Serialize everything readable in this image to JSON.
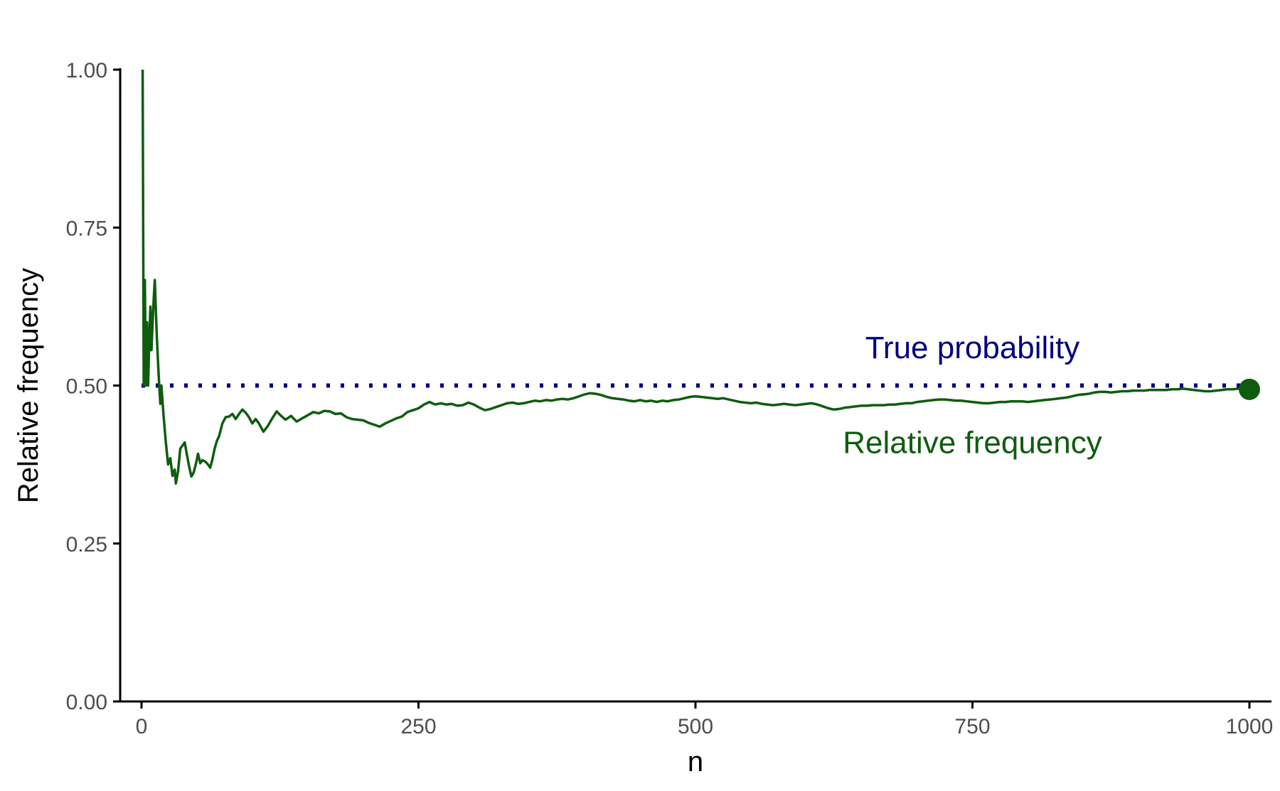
{
  "chart_data": {
    "type": "line",
    "title": "",
    "xlabel": "n",
    "ylabel": "Relative frequency",
    "xlim": [
      0,
      1000
    ],
    "ylim": [
      0,
      1
    ],
    "x_ticks": [
      0,
      250,
      500,
      750,
      1000
    ],
    "x_tick_labels": [
      "0",
      "250",
      "500",
      "750",
      "1000"
    ],
    "y_ticks": [
      0,
      0.25,
      0.5,
      0.75,
      1.0
    ],
    "y_tick_labels": [
      "0.00",
      "0.25",
      "0.50",
      "0.75",
      "1.00"
    ],
    "grid": false,
    "reference_line": {
      "y": 0.5,
      "style": "dotted",
      "color": "#000080",
      "label": "True probability"
    },
    "series": [
      {
        "name": "Relative frequency",
        "color": "#0f5c0f",
        "points": [
          [
            1,
            1.0
          ],
          [
            2,
            0.5
          ],
          [
            3,
            0.667
          ],
          [
            4,
            0.5
          ],
          [
            5,
            0.6
          ],
          [
            6,
            0.5
          ],
          [
            7,
            0.571
          ],
          [
            8,
            0.625
          ],
          [
            9,
            0.556
          ],
          [
            10,
            0.6
          ],
          [
            11,
            0.636
          ],
          [
            12,
            0.667
          ],
          [
            13,
            0.615
          ],
          [
            14,
            0.571
          ],
          [
            15,
            0.533
          ],
          [
            16,
            0.5
          ],
          [
            17,
            0.471
          ],
          [
            18,
            0.5
          ],
          [
            19,
            0.474
          ],
          [
            20,
            0.45
          ],
          [
            22,
            0.409
          ],
          [
            24,
            0.375
          ],
          [
            26,
            0.385
          ],
          [
            28,
            0.357
          ],
          [
            30,
            0.367
          ],
          [
            31,
            0.345
          ],
          [
            33,
            0.364
          ],
          [
            35,
            0.4
          ],
          [
            37,
            0.405
          ],
          [
            39,
            0.41
          ],
          [
            41,
            0.39
          ],
          [
            43,
            0.372
          ],
          [
            45,
            0.356
          ],
          [
            47,
            0.362
          ],
          [
            49,
            0.375
          ],
          [
            51,
            0.392
          ],
          [
            53,
            0.377
          ],
          [
            55,
            0.382
          ],
          [
            58,
            0.379
          ],
          [
            60,
            0.375
          ],
          [
            62,
            0.37
          ],
          [
            64,
            0.383
          ],
          [
            66,
            0.4
          ],
          [
            68,
            0.412
          ],
          [
            70,
            0.42
          ],
          [
            73,
            0.44
          ],
          [
            76,
            0.45
          ],
          [
            79,
            0.451
          ],
          [
            82,
            0.455
          ],
          [
            85,
            0.447
          ],
          [
            88,
            0.455
          ],
          [
            91,
            0.462
          ],
          [
            94,
            0.457
          ],
          [
            97,
            0.45
          ],
          [
            100,
            0.44
          ],
          [
            103,
            0.447
          ],
          [
            106,
            0.44
          ],
          [
            110,
            0.427
          ],
          [
            114,
            0.436
          ],
          [
            118,
            0.448
          ],
          [
            122,
            0.459
          ],
          [
            126,
            0.452
          ],
          [
            130,
            0.446
          ],
          [
            135,
            0.452
          ],
          [
            140,
            0.443
          ],
          [
            145,
            0.448
          ],
          [
            150,
            0.453
          ],
          [
            155,
            0.458
          ],
          [
            160,
            0.456
          ],
          [
            165,
            0.46
          ],
          [
            170,
            0.459
          ],
          [
            175,
            0.455
          ],
          [
            180,
            0.456
          ],
          [
            185,
            0.45
          ],
          [
            190,
            0.447
          ],
          [
            195,
            0.446
          ],
          [
            200,
            0.445
          ],
          [
            205,
            0.441
          ],
          [
            210,
            0.438
          ],
          [
            215,
            0.435
          ],
          [
            220,
            0.44
          ],
          [
            225,
            0.444
          ],
          [
            230,
            0.448
          ],
          [
            235,
            0.451
          ],
          [
            240,
            0.458
          ],
          [
            245,
            0.461
          ],
          [
            250,
            0.464
          ],
          [
            255,
            0.47
          ],
          [
            260,
            0.474
          ],
          [
            265,
            0.47
          ],
          [
            270,
            0.472
          ],
          [
            275,
            0.47
          ],
          [
            280,
            0.471
          ],
          [
            285,
            0.468
          ],
          [
            290,
            0.469
          ],
          [
            295,
            0.473
          ],
          [
            300,
            0.47
          ],
          [
            305,
            0.465
          ],
          [
            310,
            0.461
          ],
          [
            315,
            0.463
          ],
          [
            320,
            0.466
          ],
          [
            325,
            0.469
          ],
          [
            330,
            0.472
          ],
          [
            335,
            0.473
          ],
          [
            340,
            0.471
          ],
          [
            345,
            0.472
          ],
          [
            350,
            0.474
          ],
          [
            355,
            0.476
          ],
          [
            360,
            0.475
          ],
          [
            365,
            0.477
          ],
          [
            370,
            0.476
          ],
          [
            375,
            0.478
          ],
          [
            380,
            0.479
          ],
          [
            385,
            0.478
          ],
          [
            390,
            0.48
          ],
          [
            395,
            0.483
          ],
          [
            400,
            0.486
          ],
          [
            405,
            0.488
          ],
          [
            410,
            0.487
          ],
          [
            415,
            0.485
          ],
          [
            420,
            0.482
          ],
          [
            425,
            0.48
          ],
          [
            430,
            0.479
          ],
          [
            435,
            0.478
          ],
          [
            440,
            0.476
          ],
          [
            445,
            0.475
          ],
          [
            450,
            0.477
          ],
          [
            455,
            0.475
          ],
          [
            460,
            0.476
          ],
          [
            465,
            0.474
          ],
          [
            470,
            0.476
          ],
          [
            475,
            0.475
          ],
          [
            480,
            0.477
          ],
          [
            485,
            0.478
          ],
          [
            490,
            0.48
          ],
          [
            495,
            0.482
          ],
          [
            500,
            0.483
          ],
          [
            505,
            0.482
          ],
          [
            510,
            0.481
          ],
          [
            515,
            0.48
          ],
          [
            520,
            0.479
          ],
          [
            525,
            0.48
          ],
          [
            530,
            0.478
          ],
          [
            535,
            0.476
          ],
          [
            540,
            0.474
          ],
          [
            545,
            0.473
          ],
          [
            550,
            0.472
          ],
          [
            555,
            0.473
          ],
          [
            560,
            0.471
          ],
          [
            565,
            0.47
          ],
          [
            570,
            0.469
          ],
          [
            575,
            0.47
          ],
          [
            580,
            0.471
          ],
          [
            585,
            0.47
          ],
          [
            590,
            0.469
          ],
          [
            595,
            0.47
          ],
          [
            600,
            0.471
          ],
          [
            605,
            0.472
          ],
          [
            610,
            0.47
          ],
          [
            615,
            0.467
          ],
          [
            620,
            0.464
          ],
          [
            625,
            0.462
          ],
          [
            630,
            0.463
          ],
          [
            635,
            0.465
          ],
          [
            640,
            0.466
          ],
          [
            645,
            0.467
          ],
          [
            650,
            0.468
          ],
          [
            655,
            0.468
          ],
          [
            660,
            0.469
          ],
          [
            665,
            0.469
          ],
          [
            670,
            0.469
          ],
          [
            675,
            0.47
          ],
          [
            680,
            0.47
          ],
          [
            685,
            0.471
          ],
          [
            690,
            0.472
          ],
          [
            695,
            0.472
          ],
          [
            700,
            0.474
          ],
          [
            705,
            0.475
          ],
          [
            710,
            0.476
          ],
          [
            715,
            0.477
          ],
          [
            720,
            0.478
          ],
          [
            725,
            0.478
          ],
          [
            730,
            0.477
          ],
          [
            735,
            0.476
          ],
          [
            740,
            0.476
          ],
          [
            745,
            0.475
          ],
          [
            750,
            0.474
          ],
          [
            755,
            0.473
          ],
          [
            760,
            0.472
          ],
          [
            765,
            0.472
          ],
          [
            770,
            0.473
          ],
          [
            775,
            0.474
          ],
          [
            780,
            0.474
          ],
          [
            785,
            0.475
          ],
          [
            790,
            0.475
          ],
          [
            795,
            0.475
          ],
          [
            800,
            0.474
          ],
          [
            805,
            0.475
          ],
          [
            810,
            0.476
          ],
          [
            815,
            0.477
          ],
          [
            820,
            0.478
          ],
          [
            825,
            0.479
          ],
          [
            830,
            0.48
          ],
          [
            835,
            0.481
          ],
          [
            840,
            0.483
          ],
          [
            845,
            0.485
          ],
          [
            850,
            0.486
          ],
          [
            855,
            0.487
          ],
          [
            860,
            0.489
          ],
          [
            865,
            0.49
          ],
          [
            870,
            0.49
          ],
          [
            875,
            0.489
          ],
          [
            880,
            0.49
          ],
          [
            885,
            0.491
          ],
          [
            890,
            0.491
          ],
          [
            895,
            0.492
          ],
          [
            900,
            0.492
          ],
          [
            905,
            0.492
          ],
          [
            910,
            0.493
          ],
          [
            915,
            0.493
          ],
          [
            920,
            0.493
          ],
          [
            925,
            0.493
          ],
          [
            930,
            0.494
          ],
          [
            935,
            0.494
          ],
          [
            940,
            0.495
          ],
          [
            945,
            0.494
          ],
          [
            950,
            0.493
          ],
          [
            955,
            0.492
          ],
          [
            960,
            0.491
          ],
          [
            965,
            0.491
          ],
          [
            970,
            0.492
          ],
          [
            975,
            0.493
          ],
          [
            980,
            0.494
          ],
          [
            985,
            0.494
          ],
          [
            990,
            0.495
          ],
          [
            995,
            0.494
          ],
          [
            1000,
            0.494
          ]
        ]
      }
    ],
    "endpoint": {
      "x": 1000,
      "y": 0.494
    },
    "annotations": [
      {
        "text": "True probability",
        "x": 750,
        "y": 0.56,
        "color": "#000080"
      },
      {
        "text": "Relative frequency",
        "x": 750,
        "y": 0.41,
        "color": "#0f5c0f"
      }
    ]
  }
}
